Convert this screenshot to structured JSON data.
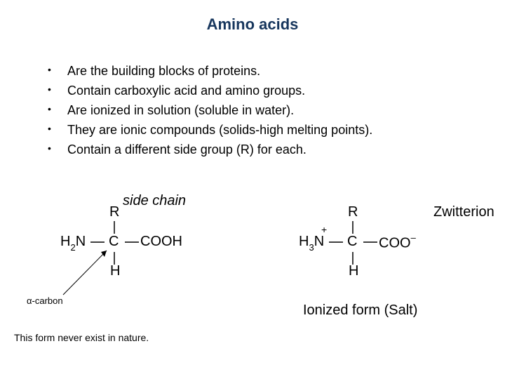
{
  "title": "Amino acids",
  "title_color": "#17365d",
  "bullets": [
    "Are the building blocks of proteins.",
    "Contain carboxylic acid and amino groups.",
    "Are ionized in solution (soluble in water).",
    "They are ionic compounds (solids-high melting points).",
    "Contain a different side group (R) for each."
  ],
  "left_structure": {
    "side_chain_label": "side chain",
    "R": "R",
    "H2N_html": "H<sub class='sub'>2</sub>N",
    "C": "C",
    "COOH": "COOH",
    "H": "H",
    "alpha_label": "α-carbon",
    "footer": "This form never exist in nature."
  },
  "right_structure": {
    "R": "R",
    "H3N_html": "H<sub class='sub'>3</sub>N",
    "plus": "+",
    "C": "C",
    "COO_minus_html": "COO<sup class='sup'>–</sup>",
    "H": "H",
    "zwitterion": "Zwitterion",
    "ionized_label": "Ionized form (Salt)"
  },
  "colors": {
    "text": "#000000",
    "line": "#000000",
    "background": "#ffffff"
  }
}
